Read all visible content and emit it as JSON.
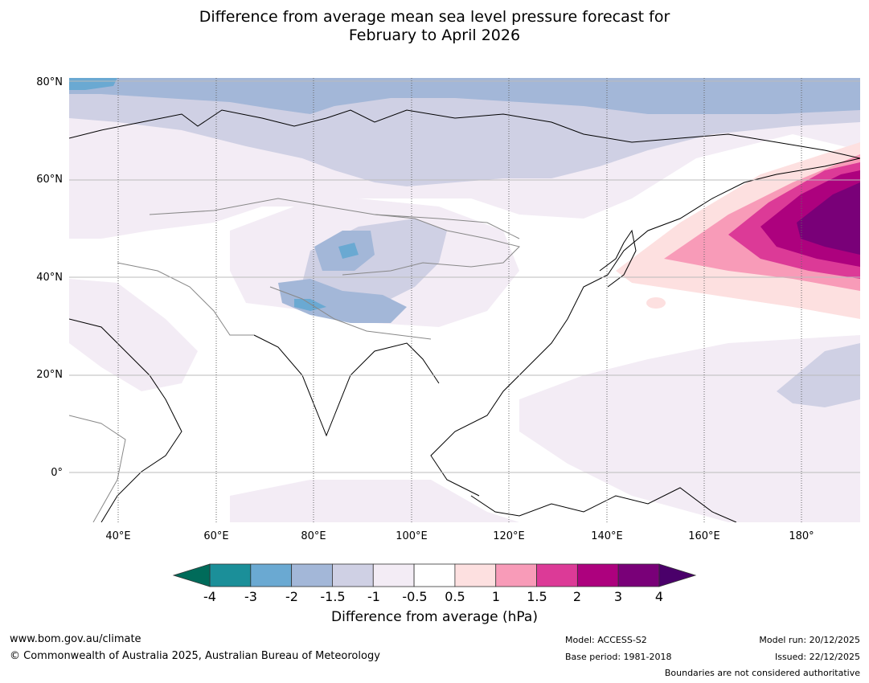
{
  "title": {
    "line1": "Difference from average mean sea level pressure forecast for",
    "line2": "February to April 2026"
  },
  "map": {
    "lat_labels": [
      "80°N",
      "60°N",
      "40°N",
      "20°N",
      "0°"
    ],
    "lon_labels": [
      "40°E",
      "60°E",
      "80°E",
      "100°E",
      "120°E",
      "140°E",
      "160°E",
      "180°"
    ]
  },
  "colorbar": {
    "ticks": [
      "-4",
      "-3",
      "-2",
      "-1.5",
      "-1",
      "-0.5",
      "0.5",
      "1",
      "1.5",
      "2",
      "3",
      "4"
    ],
    "label": "Difference from average (hPa)",
    "colors": {
      "below_-4": "#006b5a",
      "-4_-3": "#1b8f99",
      "-3_-2": "#6aa9d2",
      "-2_-1.5": "#a3b7d8",
      "-1.5_-1": "#cfd0e4",
      "-1_-0.5": "#f3ecf5",
      "-0.5_0.5": "#ffffff",
      "0.5_1": "#fde0e0",
      "1_1.5": "#f89bb8",
      "1.5_2": "#dc3a97",
      "2_3": "#ad017e",
      "3_4": "#790078",
      "above_4": "#4a006a"
    }
  },
  "footer": {
    "website": "www.bom.gov.au/climate",
    "copyright": "© Commonwealth of Australia 2025, Australian Bureau of Meteorology",
    "model": "Model: ACCESS-S2",
    "base_period": "Base period: 1981-2018",
    "model_run": "Model run: 20/12/2025",
    "issued": "Issued: 22/12/2025",
    "boundaries": "Boundaries are not considered authoritative"
  }
}
